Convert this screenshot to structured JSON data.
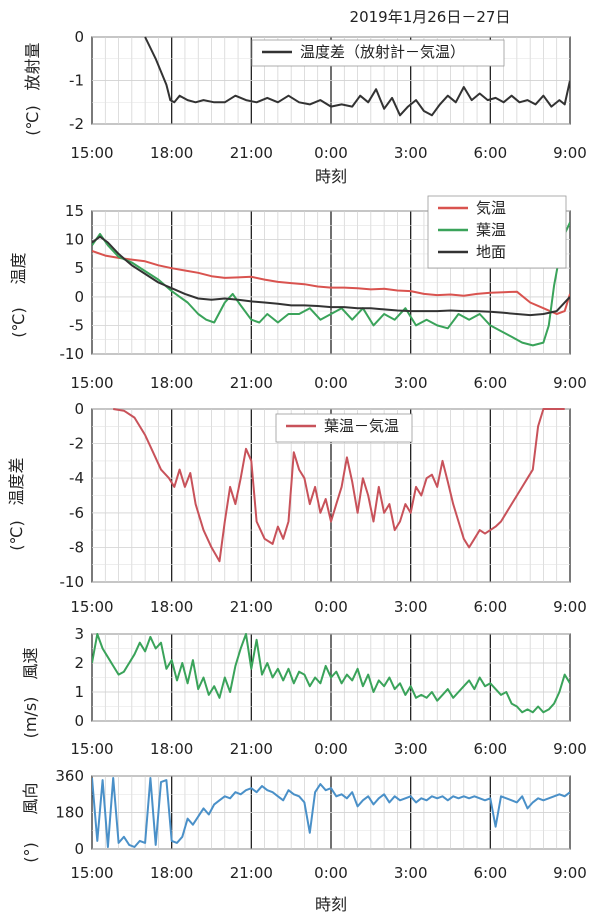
{
  "title": "2019年1月26日－27日",
  "chart_data": [
    {
      "id": "radiation",
      "type": "line",
      "ylabel": "放射量",
      "yunit": "(℃)",
      "xlabel": "時刻",
      "xticks": [
        "15:00",
        "18:00",
        "21:00",
        "0:00",
        "3:00",
        "6:00",
        "9:00"
      ],
      "yticks": [
        0,
        -1,
        -2
      ],
      "ylim": [
        -2,
        0
      ],
      "xlim": [
        0,
        18
      ],
      "grid": true,
      "legend": "top-center",
      "series": [
        {
          "name": "温度差（放射計－気温）",
          "color": "#333333",
          "x": [
            2.0,
            2.4,
            2.8,
            2.95,
            3.1,
            3.3,
            3.6,
            3.9,
            4.2,
            4.6,
            5.0,
            5.4,
            5.8,
            6.2,
            6.6,
            7.0,
            7.4,
            7.8,
            8.2,
            8.6,
            9.0,
            9.4,
            9.8,
            10.1,
            10.4,
            10.7,
            11.0,
            11.3,
            11.6,
            11.9,
            12.2,
            12.5,
            12.8,
            13.1,
            13.4,
            13.7,
            14.0,
            14.3,
            14.6,
            14.9,
            15.2,
            15.5,
            15.8,
            16.1,
            16.4,
            16.7,
            17.0,
            17.3,
            17.6,
            17.8,
            18.0
          ],
          "y": [
            0.0,
            -0.5,
            -1.1,
            -1.45,
            -1.5,
            -1.35,
            -1.45,
            -1.5,
            -1.45,
            -1.5,
            -1.5,
            -1.35,
            -1.45,
            -1.5,
            -1.4,
            -1.5,
            -1.35,
            -1.5,
            -1.55,
            -1.45,
            -1.6,
            -1.55,
            -1.6,
            -1.35,
            -1.5,
            -1.2,
            -1.65,
            -1.4,
            -1.8,
            -1.6,
            -1.45,
            -1.7,
            -1.8,
            -1.55,
            -1.35,
            -1.5,
            -1.15,
            -1.45,
            -1.3,
            -1.45,
            -1.4,
            -1.5,
            -1.35,
            -1.5,
            -1.45,
            -1.55,
            -1.35,
            -1.6,
            -1.45,
            -1.55,
            -1.0
          ]
        }
      ]
    },
    {
      "id": "temperature",
      "type": "line",
      "ylabel": "温度",
      "yunit": "(℃)",
      "xticks": [
        "15:00",
        "18:00",
        "21:00",
        "0:00",
        "3:00",
        "6:00",
        "9:00"
      ],
      "yticks": [
        15,
        10,
        5,
        0,
        -5,
        -10
      ],
      "ylim": [
        -10,
        15
      ],
      "xlim": [
        0,
        18
      ],
      "grid": true,
      "legend": "top-right",
      "series": [
        {
          "name": "気温",
          "color": "#d9534f",
          "x": [
            0,
            0.5,
            1,
            1.5,
            2,
            2.5,
            3,
            3.5,
            4,
            4.5,
            5,
            5.5,
            6,
            6.5,
            7,
            7.5,
            8,
            8.5,
            9,
            9.5,
            10,
            10.5,
            11,
            11.5,
            12,
            12.5,
            13,
            13.5,
            14,
            14.5,
            15,
            15.5,
            16,
            16.5,
            17,
            17.5,
            17.8,
            18
          ],
          "y": [
            8,
            7.2,
            6.8,
            6.5,
            6.2,
            5.5,
            5,
            4.6,
            4.2,
            3.6,
            3.3,
            3.4,
            3.5,
            3.0,
            2.6,
            2.4,
            2.2,
            1.8,
            1.6,
            1.6,
            1.5,
            1.3,
            1.4,
            1.1,
            1.0,
            0.5,
            0.3,
            0.4,
            0.2,
            0.5,
            0.7,
            0.8,
            0.9,
            -1.0,
            -2.0,
            -3.0,
            -2.5,
            0.5
          ]
        },
        {
          "name": "葉温",
          "color": "#3aa35a",
          "x": [
            0,
            0.3,
            0.6,
            1,
            1.5,
            2,
            2.5,
            3,
            3.3,
            3.6,
            4,
            4.3,
            4.6,
            5,
            5.3,
            5.6,
            6,
            6.3,
            6.6,
            7,
            7.4,
            7.8,
            8.2,
            8.6,
            9,
            9.4,
            9.8,
            10.2,
            10.6,
            11,
            11.4,
            11.8,
            12.2,
            12.6,
            13,
            13.4,
            13.8,
            14.2,
            14.6,
            15,
            15.4,
            15.8,
            16.2,
            16.6,
            17,
            17.2,
            17.4,
            17.6,
            17.8,
            18
          ],
          "y": [
            9,
            11,
            9,
            7,
            6,
            4.5,
            3,
            1,
            0,
            -1,
            -3,
            -4,
            -4.5,
            -1,
            0.5,
            -1.5,
            -4,
            -4.5,
            -3,
            -4.5,
            -3,
            -3,
            -2,
            -4,
            -3,
            -2,
            -4,
            -2,
            -5,
            -3,
            -4,
            -2,
            -5,
            -4,
            -5,
            -5.5,
            -3,
            -4,
            -3,
            -5,
            -6,
            -7,
            -8,
            -8.5,
            -8,
            -5,
            2,
            7,
            11,
            13
          ]
        },
        {
          "name": "地面",
          "color": "#333333",
          "x": [
            0,
            0.3,
            0.6,
            1,
            1.5,
            2,
            2.5,
            3,
            3.5,
            4,
            4.5,
            5,
            5.5,
            6,
            6.5,
            7,
            7.5,
            8,
            8.5,
            9,
            9.5,
            10,
            10.5,
            11,
            11.5,
            12,
            12.5,
            13,
            13.5,
            14,
            14.5,
            15,
            15.5,
            16,
            16.5,
            17,
            17.5,
            18
          ],
          "y": [
            9.5,
            10.5,
            9.5,
            7.5,
            5.5,
            4,
            2.5,
            1.5,
            0.5,
            -0.3,
            -0.5,
            -0.3,
            -0.5,
            -0.8,
            -1,
            -1.2,
            -1.5,
            -1.5,
            -1.6,
            -1.8,
            -1.8,
            -2,
            -2,
            -2.2,
            -2.4,
            -2.5,
            -2.5,
            -2.5,
            -2.4,
            -2.5,
            -2.5,
            -2.6,
            -2.8,
            -3.0,
            -3.2,
            -3.0,
            -2.5,
            0.0
          ]
        }
      ]
    },
    {
      "id": "leafdiff",
      "type": "line",
      "ylabel": "温度差",
      "yunit": "(℃)",
      "xticks": [
        "15:00",
        "18:00",
        "21:00",
        "0:00",
        "3:00",
        "6:00",
        "9:00"
      ],
      "yticks": [
        0,
        -2,
        -4,
        -6,
        -8,
        -10
      ],
      "ylim": [
        -10,
        0
      ],
      "xlim": [
        0,
        18
      ],
      "grid": true,
      "legend": "top-center",
      "series": [
        {
          "name": "葉温－気温",
          "color": "#c8525a",
          "x": [
            0.8,
            1.2,
            1.6,
            2.0,
            2.3,
            2.6,
            2.9,
            3.1,
            3.3,
            3.5,
            3.7,
            3.9,
            4.2,
            4.5,
            4.8,
            5.0,
            5.2,
            5.4,
            5.6,
            5.8,
            6.0,
            6.2,
            6.5,
            6.8,
            7.0,
            7.2,
            7.4,
            7.6,
            7.8,
            8.0,
            8.2,
            8.4,
            8.6,
            8.8,
            9.0,
            9.2,
            9.4,
            9.6,
            9.8,
            10.0,
            10.2,
            10.4,
            10.6,
            10.8,
            11.0,
            11.2,
            11.4,
            11.6,
            11.8,
            12.0,
            12.2,
            12.4,
            12.6,
            12.8,
            13.0,
            13.2,
            13.4,
            13.6,
            13.8,
            14.0,
            14.2,
            14.4,
            14.6,
            14.8,
            15.0,
            15.2,
            15.4,
            15.6,
            15.8,
            16.0,
            16.2,
            16.4,
            16.6,
            16.8,
            17.0,
            17.2,
            17.4,
            17.6,
            17.8
          ],
          "y": [
            0,
            -0.1,
            -0.5,
            -1.5,
            -2.5,
            -3.5,
            -4.0,
            -4.5,
            -3.5,
            -4.5,
            -3.7,
            -5.5,
            -7.0,
            -8.0,
            -8.8,
            -6.5,
            -4.5,
            -5.5,
            -4.0,
            -2.3,
            -3.0,
            -6.5,
            -7.5,
            -7.8,
            -6.8,
            -7.5,
            -6.5,
            -2.5,
            -3.5,
            -4.0,
            -5.5,
            -4.5,
            -6.0,
            -5.2,
            -6.5,
            -5.5,
            -4.5,
            -2.8,
            -4.2,
            -6.0,
            -4.0,
            -5.0,
            -6.5,
            -4.5,
            -6.0,
            -5.5,
            -7.0,
            -6.5,
            -5.5,
            -6.0,
            -4.5,
            -5.0,
            -4.0,
            -3.8,
            -4.5,
            -3.0,
            -4.2,
            -5.5,
            -6.5,
            -7.5,
            -8.0,
            -7.5,
            -7.0,
            -7.2,
            -7.0,
            -6.8,
            -6.5,
            -6.0,
            -5.5,
            -5.0,
            -4.5,
            -4.0,
            -3.5,
            -1.0,
            0,
            0,
            0,
            0,
            0
          ]
        }
      ]
    },
    {
      "id": "windspeed",
      "type": "line",
      "ylabel": "風速",
      "yunit": "(m/s)",
      "xticks": [
        "15:00",
        "18:00",
        "21:00",
        "0:00",
        "3:00",
        "6:00",
        "9:00"
      ],
      "yticks": [
        3,
        2,
        1,
        0
      ],
      "ylim": [
        0,
        3
      ],
      "xlim": [
        0,
        18
      ],
      "grid": true,
      "series": [
        {
          "name": "風速",
          "color": "#3aa35a",
          "x": [
            0,
            0.2,
            0.4,
            0.6,
            0.8,
            1.0,
            1.2,
            1.4,
            1.6,
            1.8,
            2.0,
            2.2,
            2.4,
            2.6,
            2.8,
            3.0,
            3.2,
            3.4,
            3.6,
            3.8,
            4.0,
            4.2,
            4.4,
            4.6,
            4.8,
            5.0,
            5.2,
            5.4,
            5.6,
            5.8,
            6.0,
            6.2,
            6.4,
            6.6,
            6.8,
            7.0,
            7.2,
            7.4,
            7.6,
            7.8,
            8.0,
            8.2,
            8.4,
            8.6,
            8.8,
            9.0,
            9.2,
            9.4,
            9.6,
            9.8,
            10.0,
            10.2,
            10.4,
            10.6,
            10.8,
            11.0,
            11.2,
            11.4,
            11.6,
            11.8,
            12.0,
            12.2,
            12.4,
            12.6,
            12.8,
            13.0,
            13.2,
            13.4,
            13.6,
            13.8,
            14.0,
            14.2,
            14.4,
            14.6,
            14.8,
            15.0,
            15.2,
            15.4,
            15.6,
            15.8,
            16.0,
            16.2,
            16.4,
            16.6,
            16.8,
            17.0,
            17.2,
            17.4,
            17.6,
            17.8,
            18.0
          ],
          "y": [
            2.0,
            3.0,
            2.5,
            2.2,
            1.9,
            1.6,
            1.7,
            2.0,
            2.3,
            2.7,
            2.4,
            2.9,
            2.5,
            2.7,
            1.8,
            2.1,
            1.4,
            2.0,
            1.3,
            2.1,
            1.1,
            1.5,
            0.9,
            1.2,
            0.8,
            1.5,
            1.0,
            1.9,
            2.5,
            3.0,
            1.8,
            2.8,
            1.6,
            2.0,
            1.5,
            1.8,
            1.4,
            1.8,
            1.3,
            1.7,
            1.6,
            1.2,
            1.5,
            1.3,
            1.9,
            1.5,
            1.7,
            1.3,
            1.6,
            1.4,
            1.8,
            1.2,
            1.6,
            1.0,
            1.4,
            1.2,
            1.5,
            1.1,
            1.3,
            0.9,
            1.2,
            0.8,
            0.9,
            0.8,
            1.0,
            0.7,
            0.9,
            1.1,
            0.8,
            1.0,
            1.2,
            1.4,
            1.1,
            1.5,
            1.2,
            1.3,
            1.1,
            0.9,
            1.0,
            0.6,
            0.5,
            0.3,
            0.4,
            0.3,
            0.5,
            0.3,
            0.4,
            0.6,
            1.0,
            1.6,
            1.3
          ]
        }
      ]
    },
    {
      "id": "winddir",
      "type": "line",
      "ylabel": "風向",
      "yunit": "(°)",
      "xlabel": "時刻",
      "xticks": [
        "15:00",
        "18:00",
        "21:00",
        "0:00",
        "3:00",
        "6:00",
        "9:00"
      ],
      "yticks": [
        360,
        180,
        0
      ],
      "ylim": [
        0,
        360
      ],
      "xlim": [
        0,
        18
      ],
      "grid": true,
      "series": [
        {
          "name": "風向",
          "color": "#4a90c8",
          "x": [
            0,
            0.2,
            0.4,
            0.6,
            0.8,
            1.0,
            1.2,
            1.4,
            1.6,
            1.8,
            2.0,
            2.2,
            2.4,
            2.6,
            2.8,
            3.0,
            3.2,
            3.4,
            3.6,
            3.8,
            4.0,
            4.2,
            4.4,
            4.6,
            4.8,
            5.0,
            5.2,
            5.4,
            5.6,
            5.8,
            6.0,
            6.2,
            6.4,
            6.6,
            6.8,
            7.0,
            7.2,
            7.4,
            7.6,
            7.8,
            8.0,
            8.2,
            8.4,
            8.6,
            8.8,
            9.0,
            9.2,
            9.4,
            9.6,
            9.8,
            10.0,
            10.2,
            10.4,
            10.6,
            10.8,
            11.0,
            11.2,
            11.4,
            11.6,
            11.8,
            12.0,
            12.2,
            12.4,
            12.6,
            12.8,
            13.0,
            13.2,
            13.4,
            13.6,
            13.8,
            14.0,
            14.2,
            14.4,
            14.6,
            14.8,
            15.0,
            15.2,
            15.4,
            15.6,
            15.8,
            16.0,
            16.2,
            16.4,
            16.6,
            16.8,
            17.0,
            17.2,
            17.4,
            17.6,
            17.8,
            18.0
          ],
          "y": [
            350,
            40,
            340,
            10,
            350,
            30,
            60,
            20,
            10,
            40,
            30,
            350,
            20,
            330,
            340,
            40,
            30,
            60,
            150,
            120,
            160,
            200,
            170,
            220,
            240,
            260,
            250,
            280,
            270,
            290,
            300,
            280,
            310,
            290,
            280,
            260,
            240,
            290,
            270,
            260,
            230,
            80,
            280,
            320,
            290,
            300,
            260,
            270,
            250,
            280,
            210,
            240,
            260,
            220,
            250,
            270,
            230,
            260,
            240,
            250,
            260,
            230,
            250,
            240,
            260,
            250,
            260,
            240,
            260,
            250,
            260,
            250,
            260,
            250,
            240,
            250,
            110,
            260,
            250,
            240,
            230,
            260,
            200,
            230,
            250,
            240,
            250,
            260,
            270,
            260,
            280
          ]
        }
      ]
    }
  ]
}
